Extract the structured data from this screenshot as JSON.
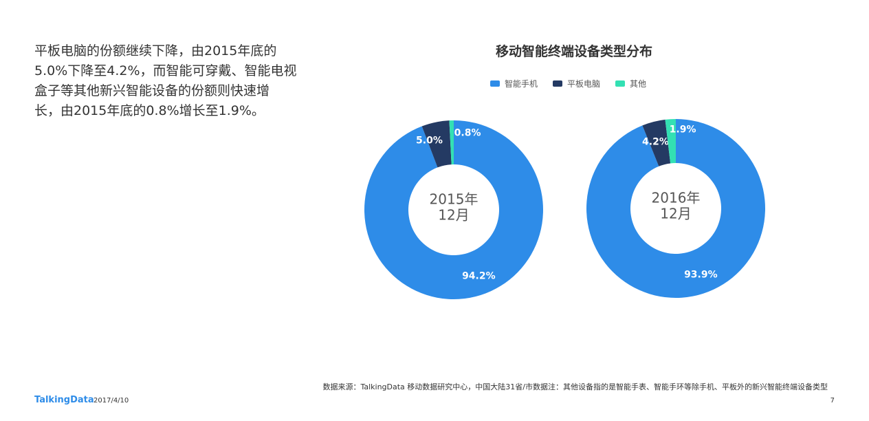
{
  "lead": {
    "lines": [
      "平板电脑的份额继续下降，由2015年底的",
      "5.0%下降至4.2%，而智能可穿戴、智能电视",
      "盒子等其他新兴智能设备的份额则快速增",
      "长，由2015年底的0.8%增长至1.9%。"
    ]
  },
  "chart": {
    "title": "移动智能终端设备类型分布"
  },
  "legend": [
    {
      "label": "智能手机",
      "color": "#2e8ce8"
    },
    {
      "label": "平板电脑",
      "color": "#243a63"
    },
    {
      "label": "其他",
      "color": "#33e0b3"
    }
  ],
  "chart_data": [
    {
      "type": "pie",
      "title": "移动智能终端设备类型分布",
      "center_label": [
        "2015年",
        "12月"
      ],
      "categories": [
        "智能手机",
        "平板电脑",
        "其他"
      ],
      "values": [
        94.2,
        5.0,
        0.8
      ],
      "value_labels": [
        "94.2%",
        "5.0%",
        "0.8%"
      ],
      "colors": [
        "#2e8ce8",
        "#243a63",
        "#33e0b3"
      ],
      "legend_position": "top"
    },
    {
      "type": "pie",
      "title": "移动智能终端设备类型分布",
      "center_label": [
        "2016年",
        "12月"
      ],
      "categories": [
        "智能手机",
        "平板电脑",
        "其他"
      ],
      "values": [
        93.9,
        4.2,
        1.9
      ],
      "value_labels": [
        "93.9%",
        "4.2%",
        "1.9%"
      ],
      "colors": [
        "#2e8ce8",
        "#243a63",
        "#33e0b3"
      ],
      "legend_position": "top"
    }
  ],
  "footer": {
    "source": "数据来源：TalkingData 移动数据研究中心，中国大陆31省/市数据注：其他设备指的是智能手表、智能手环等除手机、平板外的新兴智能终端设备类型",
    "logo": "TalkingData",
    "date": "2017/4/10",
    "page": "7"
  }
}
